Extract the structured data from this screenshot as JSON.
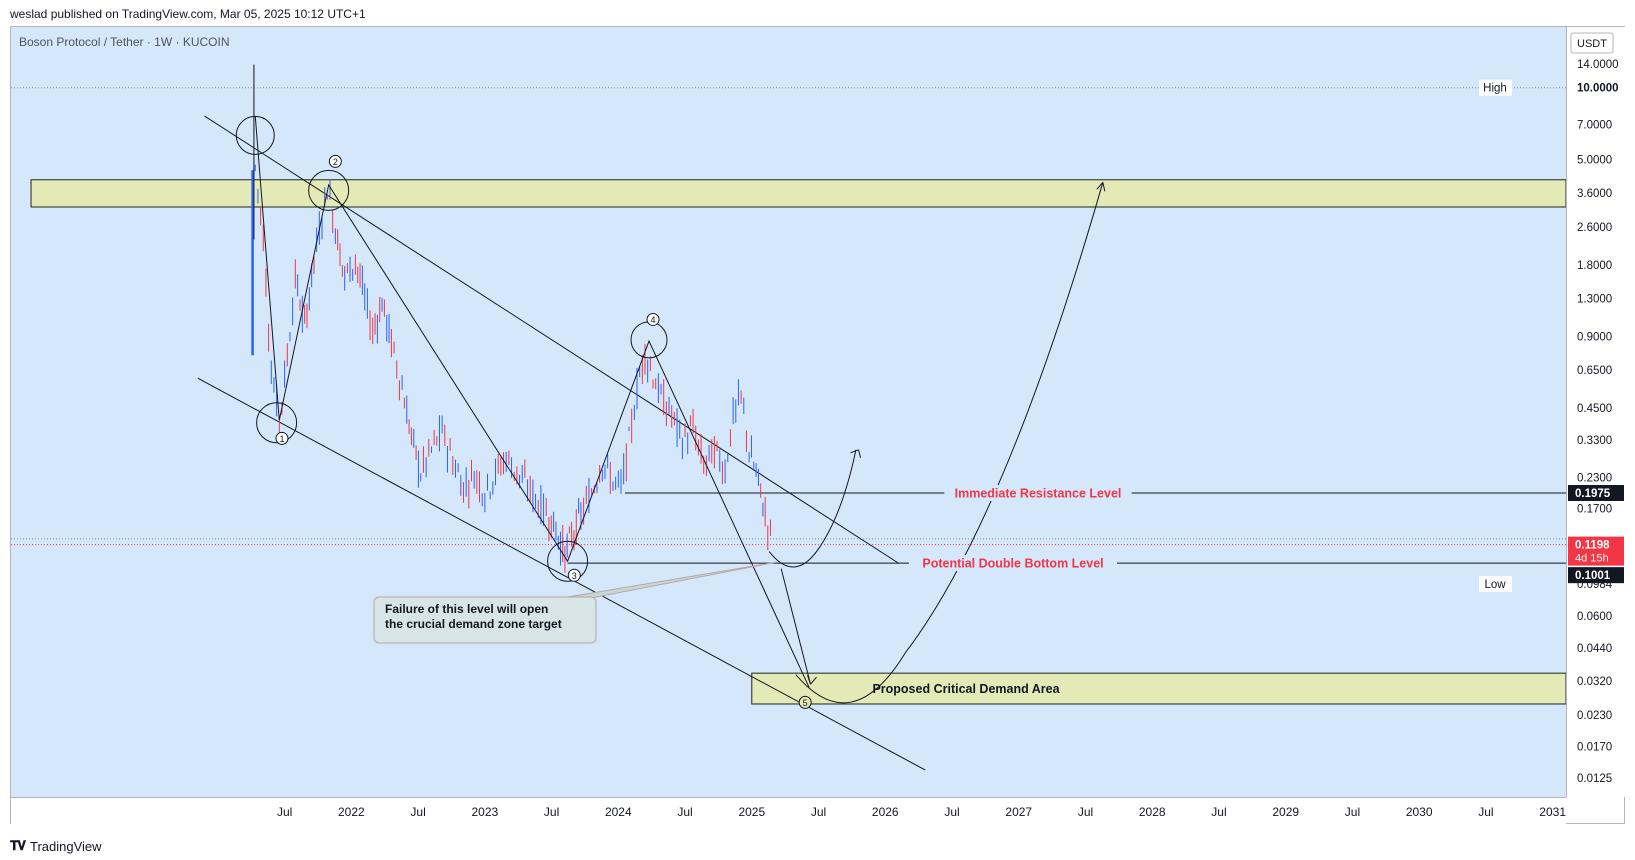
{
  "header": {
    "publisher_line": "weslad published on TradingView.com, Mar 05, 2025 10:12 UTC+1"
  },
  "symbol": {
    "title": "Boson Protocol / Tether · 1W · KUCOIN",
    "currency": "USDT"
  },
  "footer": {
    "brand": "TradingView",
    "logo_icon": "tradingview-logo-icon"
  },
  "chart_data": {
    "type": "candlestick",
    "scale": "log",
    "ylim": [
      0.0104,
      18.0
    ],
    "y_ticks": [
      "14.0000",
      "10.0000",
      "7.0000",
      "5.0000",
      "3.6000",
      "2.6000",
      "1.8000",
      "1.3000",
      "0.9000",
      "0.6500",
      "0.4500",
      "0.3300",
      "0.2300",
      "0.1700",
      "0.0600",
      "0.0440",
      "0.0320",
      "0.0230",
      "0.0170",
      "0.0125"
    ],
    "x_ticks": [
      {
        "label": "Jul",
        "t": 2021.5
      },
      {
        "label": "2022",
        "t": 2022.0
      },
      {
        "label": "Jul",
        "t": 2022.5
      },
      {
        "label": "2023",
        "t": 2023.0
      },
      {
        "label": "Jul",
        "t": 2023.5
      },
      {
        "label": "2024",
        "t": 2024.0
      },
      {
        "label": "Jul",
        "t": 2024.5
      },
      {
        "label": "2025",
        "t": 2025.0
      },
      {
        "label": "Jul",
        "t": 2025.5
      },
      {
        "label": "2026",
        "t": 2026.0
      },
      {
        "label": "Jul",
        "t": 2026.5
      },
      {
        "label": "2027",
        "t": 2027.0
      },
      {
        "label": "Jul",
        "t": 2027.5
      },
      {
        "label": "2028",
        "t": 2028.0
      },
      {
        "label": "Jul",
        "t": 2028.5
      },
      {
        "label": "2029",
        "t": 2029.0
      },
      {
        "label": "Jul",
        "t": 2029.5
      },
      {
        "label": "2030",
        "t": 2030.0
      },
      {
        "label": "Jul",
        "t": 2030.5
      },
      {
        "label": "2031",
        "t": 2031.0
      }
    ],
    "xlim": [
      2019.45,
      2031.1
    ],
    "price_path": [
      [
        2021.28,
        4.6
      ],
      [
        2021.34,
        2.4
      ],
      [
        2021.4,
        0.65
      ],
      [
        2021.46,
        0.4
      ],
      [
        2021.52,
        0.75
      ],
      [
        2021.58,
        1.6
      ],
      [
        2021.65,
        1.0
      ],
      [
        2021.72,
        1.9
      ],
      [
        2021.78,
        2.9
      ],
      [
        2021.82,
        3.9
      ],
      [
        2021.88,
        2.6
      ],
      [
        2021.95,
        1.6
      ],
      [
        2022.03,
        1.9
      ],
      [
        2022.1,
        1.3
      ],
      [
        2022.16,
        0.95
      ],
      [
        2022.23,
        1.25
      ],
      [
        2022.3,
        0.85
      ],
      [
        2022.38,
        0.55
      ],
      [
        2022.45,
        0.34
      ],
      [
        2022.52,
        0.24
      ],
      [
        2022.6,
        0.3
      ],
      [
        2022.68,
        0.36
      ],
      [
        2022.76,
        0.27
      ],
      [
        2022.84,
        0.21
      ],
      [
        2022.92,
        0.24
      ],
      [
        2023.0,
        0.2
      ],
      [
        2023.08,
        0.24
      ],
      [
        2023.16,
        0.28
      ],
      [
        2023.24,
        0.24
      ],
      [
        2023.32,
        0.21
      ],
      [
        2023.4,
        0.18
      ],
      [
        2023.48,
        0.16
      ],
      [
        2023.55,
        0.13
      ],
      [
        2023.6,
        0.11
      ],
      [
        2023.65,
        0.13
      ],
      [
        2023.72,
        0.16
      ],
      [
        2023.8,
        0.2
      ],
      [
        2023.88,
        0.27
      ],
      [
        2023.96,
        0.22
      ],
      [
        2024.02,
        0.21
      ],
      [
        2024.08,
        0.32
      ],
      [
        2024.14,
        0.55
      ],
      [
        2024.2,
        0.78
      ],
      [
        2024.26,
        0.62
      ],
      [
        2024.32,
        0.5
      ],
      [
        2024.4,
        0.42
      ],
      [
        2024.48,
        0.33
      ],
      [
        2024.56,
        0.37
      ],
      [
        2024.64,
        0.26
      ],
      [
        2024.72,
        0.3
      ],
      [
        2024.8,
        0.25
      ],
      [
        2024.86,
        0.42
      ],
      [
        2024.92,
        0.5
      ],
      [
        2024.98,
        0.3
      ],
      [
        2025.05,
        0.22
      ],
      [
        2025.1,
        0.16
      ],
      [
        2025.16,
        0.12
      ]
    ],
    "high": {
      "label": "High",
      "value": "10.0000",
      "y": 10.0
    },
    "low": {
      "label": "Low",
      "value": "0.0984",
      "y": 0.0984
    },
    "current_price": {
      "value": "0.1198",
      "countdown": "4d 15h",
      "y": 0.1198,
      "color": "#f23645"
    },
    "immediate_resistance": {
      "label": "Immediate Resistance Level",
      "value": "0.1975",
      "y": 0.1975
    },
    "double_bottom": {
      "label": "Potential Double Bottom Level",
      "value": "0.1001",
      "y": 0.1001
    },
    "supply_zone": {
      "t_start": 2019.6,
      "t_end": 2031.1,
      "y_low": 3.15,
      "y_high": 4.1
    },
    "demand_zone": {
      "label": "Proposed Critical Demand Area",
      "t_start": 2025.0,
      "t_end": 2031.1,
      "y_low": 0.0256,
      "y_high": 0.0345
    },
    "callout": {
      "line1": "Failure of this level will open",
      "line2": "the crucial demand zone target"
    },
    "wave_labels": [
      "1",
      "2",
      "3",
      "4",
      "5"
    ],
    "colors": {
      "up": "#2962ff",
      "down": "#f23645",
      "zone": "#e4eab6",
      "annotation": "#f23645",
      "background": "#d4e7fb"
    }
  }
}
